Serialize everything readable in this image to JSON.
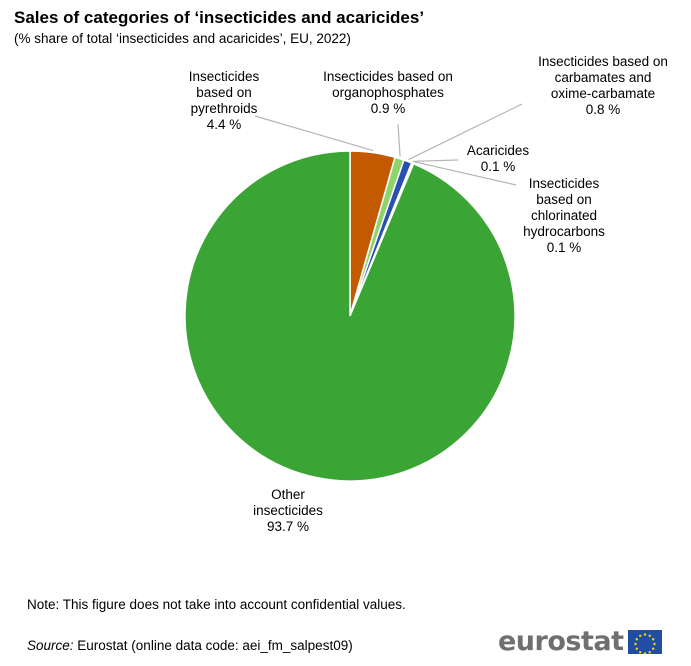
{
  "header": {
    "title": "Sales of categories of ‘insecticides and acaricides’",
    "subtitle": "(% share of total ‘insecticides and acaricides’, EU, 2022)"
  },
  "chart_data": {
    "type": "pie",
    "title": "Sales of categories of ‘insecticides and acaricides’",
    "subtitle": "(% share of total ‘insecticides and acaricides’, EU, 2022)",
    "unit": "%",
    "slices": [
      {
        "label": "Insecticides based on pyrethroids",
        "label_lines": [
          "Insecticides",
          "based on",
          "pyrethroids"
        ],
        "value": 4.4,
        "value_label": "4.4 %",
        "color": "#c45a00"
      },
      {
        "label": "Insecticides based on organophosphates",
        "label_lines": [
          "Insecticides based on",
          "organophosphates"
        ],
        "value": 0.9,
        "value_label": "0.9 %",
        "color": "#8fd36b"
      },
      {
        "label": "Insecticides based on carbamates and oxime-carbamate",
        "label_lines": [
          "Insecticides based on",
          "carbamates and",
          "oxime-carbamate"
        ],
        "value": 0.8,
        "value_label": "0.8 %",
        "color": "#2a4fb3"
      },
      {
        "label": "Acaricides",
        "label_lines": [
          "Acaricides"
        ],
        "value": 0.1,
        "value_label": "0.1 %",
        "color": "#3a3a3a"
      },
      {
        "label": "Insecticides based on chlorinated hydrocarbons",
        "label_lines": [
          "Insecticides",
          "based on",
          "chlorinated",
          "hydrocarbons"
        ],
        "value": 0.1,
        "value_label": "0.1 %",
        "color": "#7aaed6"
      },
      {
        "label": "Other insecticides",
        "label_lines": [
          "Other",
          "insecticides"
        ],
        "value": 93.7,
        "value_label": "93.7 %",
        "color": "#3aa535"
      }
    ]
  },
  "footer": {
    "note": "Note: This figure does not take into account confidential values.",
    "source_label": "Source:",
    "source_text": " Eurostat (online data code: aei_fm_salpest09)",
    "logo_text": "eurostat"
  }
}
